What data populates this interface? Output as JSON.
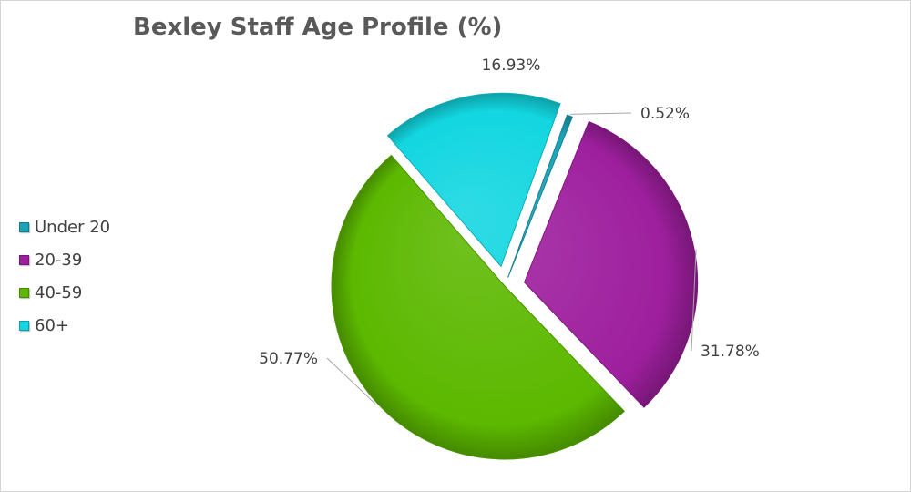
{
  "chart_data": {
    "type": "pie",
    "title": "Bexley Staff Age Profile (%)",
    "legend_position": "left",
    "slices": [
      {
        "label": "Under 20",
        "value": 0.52,
        "data_label": "0.52%",
        "color": "#1aa3b8"
      },
      {
        "label": "20-39",
        "value": 31.78,
        "data_label": "31.78%",
        "color": "#9e1f9e"
      },
      {
        "label": "40-59",
        "value": 50.77,
        "data_label": "50.77%",
        "color": "#5cb800"
      },
      {
        "label": "60+",
        "value": 16.93,
        "data_label": "16.93%",
        "color": "#12d6e0"
      }
    ]
  }
}
